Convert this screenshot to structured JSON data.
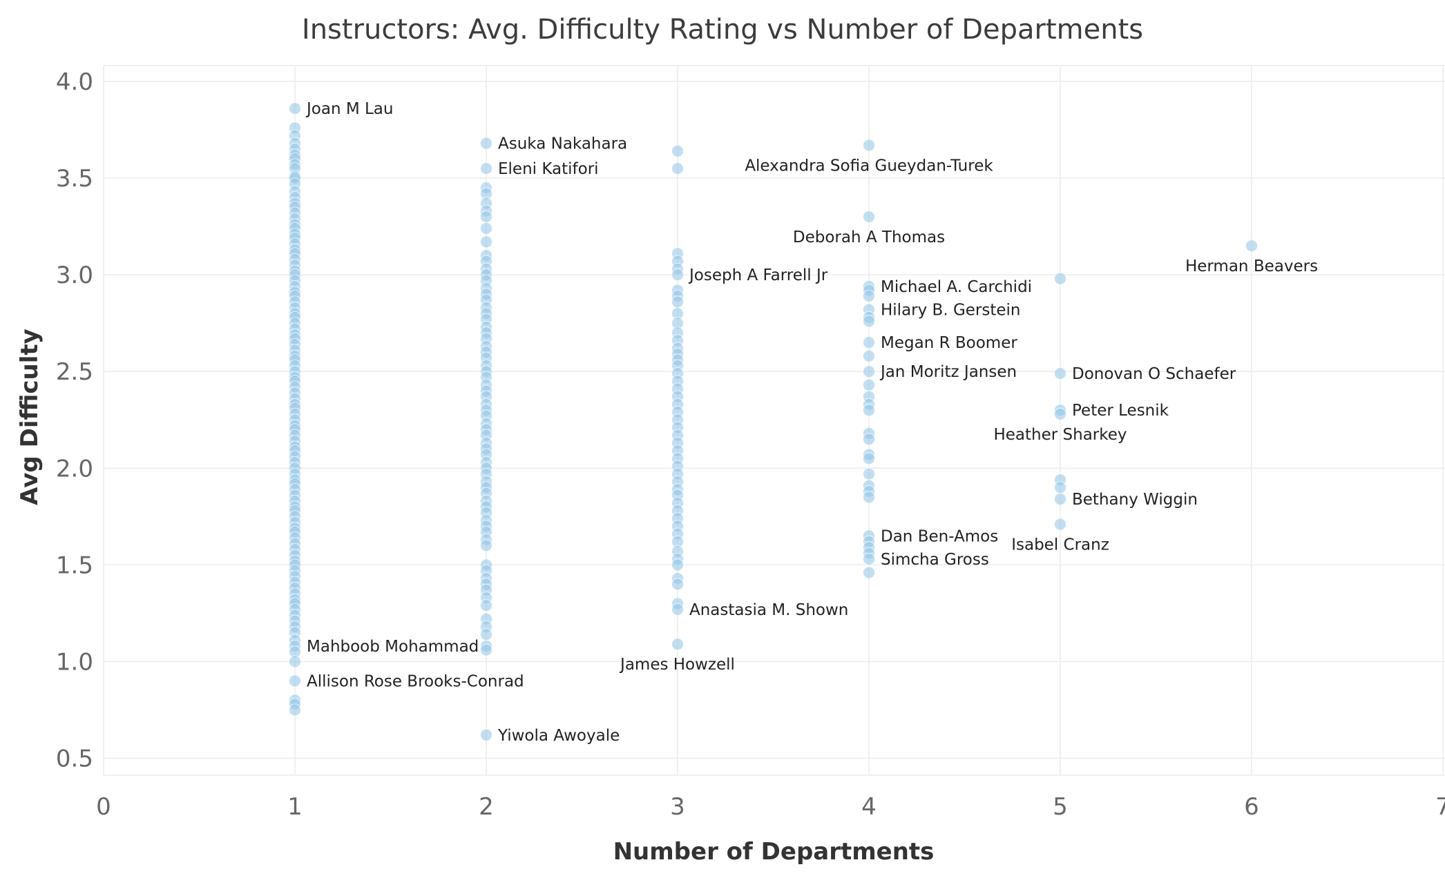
{
  "chart_data": {
    "type": "scatter",
    "title": "Instructors: Avg. Difficulty Rating vs Number of Departments",
    "xlabel": "Number of Departments",
    "ylabel": "Avg Difficulty",
    "xlim": [
      0,
      7
    ],
    "ylim": [
      0.4,
      4.08
    ],
    "xticks": [
      "0",
      "1",
      "2",
      "3",
      "4",
      "5",
      "6",
      "7"
    ],
    "yticks": [
      "0.5",
      "1.0",
      "1.5",
      "2.0",
      "2.5",
      "3.0",
      "3.5",
      "4.0"
    ],
    "grid": true,
    "point_color": "#8fc4e8",
    "series": [
      {
        "x": 1,
        "values": [
          3.86,
          3.76,
          3.72,
          3.68,
          3.65,
          3.62,
          3.6,
          3.57,
          3.55,
          3.51,
          3.5,
          3.47,
          3.43,
          3.4,
          3.37,
          3.35,
          3.32,
          3.29,
          3.26,
          3.24,
          3.21,
          3.19,
          3.16,
          3.13,
          3.11,
          3.08,
          3.05,
          3.02,
          3.0,
          2.97,
          2.94,
          2.91,
          2.89,
          2.86,
          2.83,
          2.8,
          2.78,
          2.75,
          2.72,
          2.69,
          2.67,
          2.64,
          2.61,
          2.58,
          2.56,
          2.53,
          2.5,
          2.47,
          2.45,
          2.42,
          2.39,
          2.36,
          2.33,
          2.31,
          2.28,
          2.25,
          2.22,
          2.2,
          2.17,
          2.14,
          2.11,
          2.09,
          2.06,
          2.03,
          2.0,
          1.97,
          1.94,
          1.92,
          1.89,
          1.86,
          1.83,
          1.8,
          1.78,
          1.75,
          1.72,
          1.69,
          1.67,
          1.64,
          1.61,
          1.58,
          1.55,
          1.52,
          1.5,
          1.47,
          1.44,
          1.41,
          1.38,
          1.35,
          1.32,
          1.3,
          1.27,
          1.24,
          1.21,
          1.18,
          1.15,
          1.11,
          1.08,
          1.05,
          1.0,
          0.9,
          0.8,
          0.78,
          0.75
        ]
      },
      {
        "x": 2,
        "values": [
          3.68,
          3.55,
          3.45,
          3.42,
          3.37,
          3.33,
          3.3,
          3.24,
          3.17,
          3.1,
          3.07,
          3.03,
          3.0,
          2.97,
          2.93,
          2.9,
          2.87,
          2.83,
          2.8,
          2.77,
          2.73,
          2.7,
          2.67,
          2.63,
          2.6,
          2.57,
          2.53,
          2.5,
          2.47,
          2.43,
          2.4,
          2.37,
          2.33,
          2.3,
          2.27,
          2.23,
          2.2,
          2.17,
          2.13,
          2.1,
          2.07,
          2.03,
          2.0,
          1.97,
          1.93,
          1.9,
          1.87,
          1.83,
          1.8,
          1.77,
          1.73,
          1.7,
          1.67,
          1.63,
          1.6,
          1.5,
          1.47,
          1.43,
          1.4,
          1.37,
          1.33,
          1.29,
          1.22,
          1.18,
          1.14,
          1.08,
          1.06,
          0.62
        ]
      },
      {
        "x": 3,
        "values": [
          3.64,
          3.55,
          3.11,
          3.07,
          3.03,
          3.0,
          2.92,
          2.89,
          2.86,
          2.8,
          2.75,
          2.7,
          2.66,
          2.62,
          2.59,
          2.56,
          2.53,
          2.49,
          2.45,
          2.41,
          2.37,
          2.33,
          2.29,
          2.25,
          2.21,
          2.17,
          2.13,
          2.09,
          2.05,
          2.01,
          1.97,
          1.93,
          1.89,
          1.86,
          1.82,
          1.78,
          1.74,
          1.7,
          1.66,
          1.62,
          1.57,
          1.53,
          1.5,
          1.43,
          1.4,
          1.3,
          1.27,
          1.09
        ]
      },
      {
        "x": 4,
        "values": [
          3.67,
          3.3,
          2.94,
          2.92,
          2.89,
          2.82,
          2.78,
          2.76,
          2.65,
          2.58,
          2.5,
          2.43,
          2.37,
          2.33,
          2.3,
          2.18,
          2.15,
          2.07,
          2.05,
          1.97,
          1.91,
          1.88,
          1.85,
          1.65,
          1.62,
          1.59,
          1.56,
          1.53,
          1.46
        ]
      },
      {
        "x": 5,
        "values": [
          2.98,
          2.49,
          2.3,
          2.28,
          1.94,
          1.9,
          1.84,
          1.71
        ]
      },
      {
        "x": 6,
        "values": [
          3.15
        ]
      }
    ],
    "annotations": [
      {
        "text": "Joan M Lau",
        "x": 1,
        "y": 3.86,
        "side": "right"
      },
      {
        "text": "Asuka Nakahara",
        "x": 2,
        "y": 3.68,
        "side": "right"
      },
      {
        "text": "Eleni Katifori",
        "x": 2,
        "y": 3.55,
        "side": "right"
      },
      {
        "text": "Alexandra Sofia Gueydan-Turek",
        "x": 4,
        "y": 3.67,
        "side": "below"
      },
      {
        "text": "Deborah A Thomas",
        "x": 4,
        "y": 3.3,
        "side": "below"
      },
      {
        "text": "Herman Beavers",
        "x": 6,
        "y": 3.15,
        "side": "below"
      },
      {
        "text": "Joseph A Farrell Jr",
        "x": 3,
        "y": 3.0,
        "side": "right"
      },
      {
        "text": "Michael A. Carchidi",
        "x": 4,
        "y": 2.94,
        "side": "right"
      },
      {
        "text": "Hilary B. Gerstein",
        "x": 4,
        "y": 2.82,
        "side": "right"
      },
      {
        "text": "Megan R Boomer",
        "x": 4,
        "y": 2.65,
        "side": "right"
      },
      {
        "text": "Jan Moritz Jansen",
        "x": 4,
        "y": 2.5,
        "side": "right"
      },
      {
        "text": "Donovan O Schaefer",
        "x": 5,
        "y": 2.49,
        "side": "right"
      },
      {
        "text": "Peter Lesnik",
        "x": 5,
        "y": 2.3,
        "side": "right"
      },
      {
        "text": "Heather Sharkey",
        "x": 5,
        "y": 2.28,
        "side": "below"
      },
      {
        "text": "Bethany Wiggin",
        "x": 5,
        "y": 1.84,
        "side": "right"
      },
      {
        "text": "Dan Ben-Amos",
        "x": 4,
        "y": 1.65,
        "side": "right"
      },
      {
        "text": "Isabel Cranz",
        "x": 5,
        "y": 1.71,
        "side": "below"
      },
      {
        "text": "Simcha Gross",
        "x": 4,
        "y": 1.53,
        "side": "right"
      },
      {
        "text": "Anastasia M. Shown",
        "x": 3,
        "y": 1.27,
        "side": "right"
      },
      {
        "text": "Mahboob Mohammad",
        "x": 1,
        "y": 1.08,
        "side": "right"
      },
      {
        "text": "James Howzell",
        "x": 3,
        "y": 1.09,
        "side": "below"
      },
      {
        "text": "Allison Rose Brooks-Conrad",
        "x": 1,
        "y": 0.9,
        "side": "right"
      },
      {
        "text": "Yiwola Awoyale",
        "x": 2,
        "y": 0.62,
        "side": "right"
      }
    ]
  }
}
